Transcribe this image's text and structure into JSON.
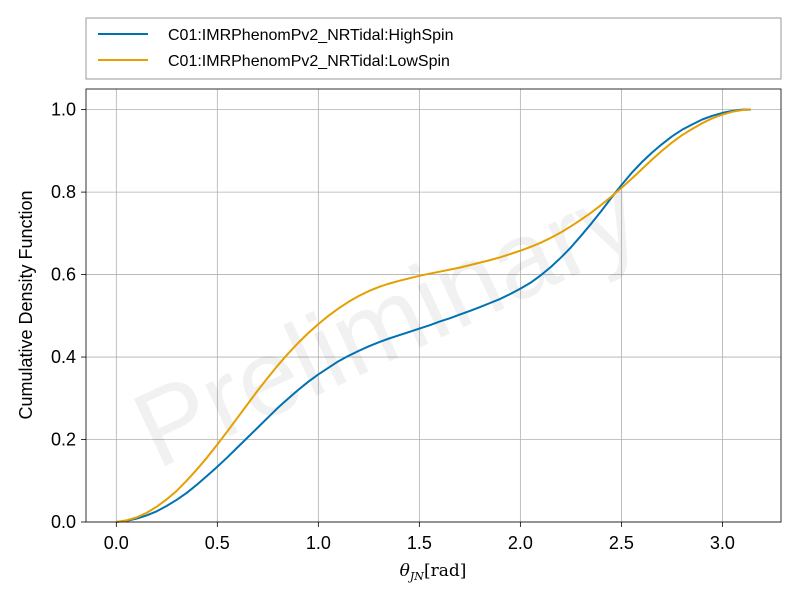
{
  "chart_data": {
    "type": "line",
    "title": "",
    "xlabel": "θ_JN[rad]",
    "ylabel": "Cumulative Density Function",
    "xlim": [
      -0.15,
      3.29
    ],
    "ylim": [
      0.0,
      1.05
    ],
    "xticks": [
      "0.0",
      "0.5",
      "1.0",
      "1.5",
      "2.0",
      "2.5",
      "3.0"
    ],
    "yticks": [
      "0.0",
      "0.2",
      "0.4",
      "0.6",
      "0.8",
      "1.0"
    ],
    "grid": true,
    "legend_placement": "top, above plot",
    "watermark": "Preliminary",
    "series": [
      {
        "name": "C01:IMRPhenomPv2_NRTidal:HighSpin",
        "color": "#0072b2",
        "x": [
          0.0,
          0.05,
          0.1,
          0.15,
          0.2,
          0.25,
          0.3,
          0.35,
          0.4,
          0.45,
          0.5,
          0.55,
          0.6,
          0.65,
          0.7,
          0.75,
          0.8,
          0.85,
          0.9,
          0.95,
          1.0,
          1.05,
          1.1,
          1.15,
          1.2,
          1.25,
          1.3,
          1.35,
          1.4,
          1.45,
          1.5,
          1.55,
          1.6,
          1.65,
          1.7,
          1.75,
          1.8,
          1.85,
          1.9,
          1.95,
          2.0,
          2.05,
          2.1,
          2.15,
          2.2,
          2.25,
          2.3,
          2.35,
          2.4,
          2.45,
          2.5,
          2.55,
          2.6,
          2.65,
          2.7,
          2.75,
          2.8,
          2.85,
          2.9,
          2.95,
          3.0,
          3.05,
          3.1,
          3.14
        ],
        "y": [
          0.0,
          0.003,
          0.008,
          0.016,
          0.026,
          0.039,
          0.054,
          0.071,
          0.091,
          0.112,
          0.134,
          0.157,
          0.181,
          0.205,
          0.229,
          0.253,
          0.277,
          0.299,
          0.32,
          0.34,
          0.358,
          0.374,
          0.39,
          0.403,
          0.415,
          0.426,
          0.436,
          0.445,
          0.453,
          0.461,
          0.469,
          0.477,
          0.486,
          0.494,
          0.503,
          0.512,
          0.521,
          0.531,
          0.541,
          0.553,
          0.566,
          0.58,
          0.598,
          0.618,
          0.641,
          0.666,
          0.694,
          0.723,
          0.754,
          0.786,
          0.817,
          0.846,
          0.872,
          0.895,
          0.916,
          0.935,
          0.951,
          0.964,
          0.976,
          0.985,
          0.992,
          0.997,
          1.0,
          1.0
        ]
      },
      {
        "name": "C01:IMRPhenomPv2_NRTidal:LowSpin",
        "color": "#e69f00",
        "x": [
          0.0,
          0.05,
          0.1,
          0.15,
          0.2,
          0.25,
          0.3,
          0.35,
          0.4,
          0.45,
          0.5,
          0.55,
          0.6,
          0.65,
          0.7,
          0.75,
          0.8,
          0.85,
          0.9,
          0.95,
          1.0,
          1.05,
          1.1,
          1.15,
          1.2,
          1.25,
          1.3,
          1.35,
          1.4,
          1.45,
          1.5,
          1.55,
          1.6,
          1.65,
          1.7,
          1.75,
          1.8,
          1.85,
          1.9,
          1.95,
          2.0,
          2.05,
          2.1,
          2.15,
          2.2,
          2.25,
          2.3,
          2.35,
          2.4,
          2.45,
          2.5,
          2.55,
          2.6,
          2.65,
          2.7,
          2.75,
          2.8,
          2.85,
          2.9,
          2.95,
          3.0,
          3.05,
          3.1,
          3.14
        ],
        "y": [
          0.0,
          0.004,
          0.011,
          0.022,
          0.037,
          0.055,
          0.076,
          0.101,
          0.128,
          0.157,
          0.188,
          0.22,
          0.253,
          0.286,
          0.319,
          0.35,
          0.38,
          0.408,
          0.434,
          0.458,
          0.48,
          0.5,
          0.518,
          0.534,
          0.548,
          0.56,
          0.57,
          0.578,
          0.585,
          0.591,
          0.597,
          0.602,
          0.607,
          0.612,
          0.617,
          0.623,
          0.629,
          0.635,
          0.642,
          0.65,
          0.658,
          0.667,
          0.677,
          0.689,
          0.702,
          0.717,
          0.733,
          0.75,
          0.769,
          0.789,
          0.81,
          0.832,
          0.855,
          0.878,
          0.9,
          0.92,
          0.938,
          0.953,
          0.967,
          0.979,
          0.988,
          0.995,
          0.999,
          1.0
        ]
      }
    ]
  }
}
